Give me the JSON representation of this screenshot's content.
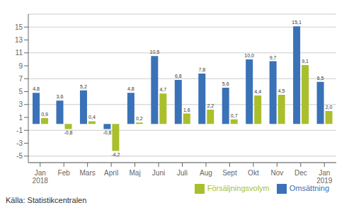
{
  "chart_data": {
    "type": "bar",
    "categories": [
      "Jan\n2018",
      "Feb",
      "Mars",
      "April",
      "Maj",
      "Juni",
      "Juli",
      "Aug",
      "Sept",
      "Okt",
      "Nov",
      "Dec",
      "Jan\n2019"
    ],
    "series": [
      {
        "name": "Omsättning",
        "color": "#3a72b8",
        "values": [
          4.8,
          3.6,
          5.2,
          -0.8,
          4.8,
          10.5,
          6.8,
          7.8,
          5.6,
          10.0,
          9.7,
          15.1,
          6.5
        ],
        "value_labels": [
          "4,8",
          "3,6",
          "5,2",
          "-0,8",
          "4,8",
          "10,5",
          "6,8",
          "7,8",
          "5,6",
          "10,0",
          "9,7",
          "15,1",
          "6,5"
        ]
      },
      {
        "name": "Försäljningsvolym",
        "color": "#aabf2c",
        "values": [
          0.9,
          -0.8,
          0.4,
          -4.2,
          0.2,
          4.7,
          1.6,
          2.2,
          0.7,
          4.4,
          4.5,
          9.1,
          2.0
        ],
        "value_labels": [
          "0,9",
          "-0,8",
          "0,4",
          "-4,2",
          "0,2",
          "4,7",
          "1,6",
          "2,2",
          "0,7",
          "4,4",
          "4,5",
          "9,1",
          "2,0"
        ]
      }
    ],
    "ylim": [
      -6,
      17
    ],
    "yticks": [
      -5,
      -3,
      -1,
      1,
      3,
      5,
      7,
      9,
      11,
      13,
      15
    ],
    "grid": true,
    "legend": "lower right",
    "data_labels": true,
    "annotations": [
      "Källa: Statistikcentralen"
    ]
  }
}
